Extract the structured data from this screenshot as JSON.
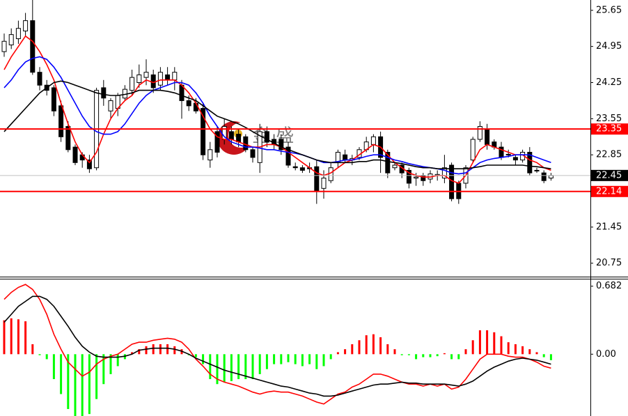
{
  "chart_data": [
    {
      "type": "candlestick",
      "ylim": [
        20.49,
        25.85
      ],
      "yticks": [
        25.65,
        24.95,
        24.25,
        23.55,
        22.85,
        21.45,
        20.75
      ],
      "up_color": "#ffffff",
      "down_color": "#000000",
      "edge_color": "#000000",
      "open": [
        24.85,
        24.98,
        25.1,
        25.25,
        25.45,
        24.45,
        24.2,
        24.15,
        23.8,
        23.4,
        23.0,
        22.85,
        22.75,
        22.6,
        24.15,
        23.7,
        23.75,
        23.95,
        24.1,
        24.25,
        24.35,
        24.4,
        24.2,
        24.4,
        24.3,
        24.2,
        23.9,
        23.85,
        23.75,
        22.75,
        23.3,
        23.15,
        23.3,
        23.25,
        23.2,
        22.95,
        22.7,
        23.3,
        23.15,
        23.15,
        23.0,
        22.62,
        22.6,
        22.6,
        22.62,
        22.2,
        22.35,
        22.7,
        22.85,
        22.75,
        22.8,
        22.95,
        23.05,
        23.2,
        22.9,
        22.6,
        22.65,
        22.55,
        22.4,
        22.45,
        22.38,
        22.45,
        22.4,
        22.65,
        22.3,
        22.3,
        22.75,
        23.15,
        23.35,
        23.1,
        23.0,
        22.85,
        22.8,
        22.75,
        22.9,
        22.55,
        22.5,
        22.4
      ],
      "high": [
        25.2,
        25.3,
        25.45,
        25.6,
        25.85,
        24.55,
        24.3,
        24.2,
        23.9,
        23.5,
        23.05,
        22.9,
        22.85,
        24.15,
        24.3,
        23.95,
        24.05,
        24.2,
        24.5,
        24.6,
        24.7,
        24.5,
        24.55,
        24.55,
        24.55,
        24.3,
        24.0,
        23.95,
        23.85,
        23.1,
        23.4,
        23.55,
        23.4,
        23.35,
        23.25,
        23.0,
        23.45,
        23.4,
        23.25,
        23.25,
        23.1,
        22.7,
        22.65,
        22.7,
        22.75,
        22.55,
        22.7,
        22.95,
        22.95,
        22.85,
        23.0,
        23.2,
        23.25,
        23.3,
        22.95,
        22.7,
        22.7,
        22.6,
        22.5,
        22.5,
        22.55,
        22.55,
        22.85,
        22.7,
        22.35,
        22.65,
        23.2,
        23.5,
        23.45,
        23.15,
        23.1,
        22.95,
        22.85,
        22.95,
        23.0,
        22.6,
        22.55,
        22.5
      ],
      "low": [
        24.75,
        24.9,
        25.0,
        25.15,
        24.4,
        24.1,
        24.0,
        23.6,
        23.1,
        22.9,
        22.65,
        22.6,
        22.5,
        22.55,
        23.8,
        23.55,
        23.6,
        23.9,
        24.0,
        24.15,
        24.2,
        24.05,
        24.1,
        24.2,
        24.1,
        23.55,
        23.7,
        23.65,
        22.75,
        22.6,
        22.8,
        23.05,
        23.05,
        23.0,
        22.9,
        22.7,
        22.5,
        23.0,
        22.95,
        22.85,
        22.6,
        22.55,
        22.5,
        22.5,
        21.9,
        22.0,
        22.3,
        22.6,
        22.7,
        22.65,
        22.75,
        22.9,
        22.9,
        22.5,
        22.4,
        22.55,
        22.4,
        22.2,
        22.25,
        22.25,
        22.3,
        22.35,
        22.3,
        21.95,
        21.9,
        22.2,
        22.7,
        23.1,
        22.95,
        22.95,
        22.75,
        22.8,
        22.65,
        22.7,
        22.45,
        22.5,
        22.3,
        22.35
      ],
      "close": [
        25.05,
        25.18,
        25.3,
        25.45,
        24.45,
        24.2,
        24.1,
        23.7,
        23.2,
        22.95,
        22.7,
        22.75,
        22.58,
        24.1,
        23.95,
        23.9,
        24.0,
        24.12,
        24.35,
        24.4,
        24.45,
        24.15,
        24.45,
        24.3,
        24.45,
        23.9,
        23.8,
        23.7,
        22.85,
        22.95,
        22.9,
        23.4,
        23.15,
        23.1,
        22.95,
        22.8,
        23.3,
        23.1,
        23.05,
        22.95,
        22.65,
        22.6,
        22.55,
        22.58,
        22.15,
        22.4,
        22.6,
        22.9,
        22.75,
        22.78,
        22.95,
        23.1,
        23.2,
        22.8,
        22.5,
        22.65,
        22.5,
        22.3,
        22.42,
        22.35,
        22.48,
        22.47,
        22.6,
        22.0,
        22.0,
        22.6,
        23.15,
        23.4,
        23.05,
        23.0,
        22.8,
        22.86,
        22.75,
        22.9,
        22.5,
        22.55,
        22.35,
        22.45
      ],
      "series": [
        {
          "color": "#ff0000",
          "values": [
            24.5,
            24.75,
            24.95,
            25.15,
            25.05,
            24.85,
            24.6,
            24.3,
            23.85,
            23.45,
            23.1,
            22.85,
            22.7,
            22.9,
            23.25,
            23.55,
            23.75,
            23.9,
            24.0,
            24.2,
            24.3,
            24.25,
            24.3,
            24.3,
            24.3,
            24.2,
            24.05,
            23.85,
            23.6,
            23.35,
            23.2,
            23.15,
            23.15,
            23.1,
            23.05,
            23.0,
            23.0,
            23.05,
            23.05,
            23.0,
            22.9,
            22.8,
            22.7,
            22.6,
            22.5,
            22.45,
            22.5,
            22.6,
            22.7,
            22.75,
            22.85,
            22.95,
            23.05,
            23.0,
            22.85,
            22.7,
            22.6,
            22.5,
            22.45,
            22.42,
            22.42,
            22.45,
            22.45,
            22.35,
            22.3,
            22.45,
            22.7,
            22.95,
            23.05,
            23.0,
            22.95,
            22.9,
            22.85,
            22.85,
            22.75,
            22.7,
            22.6,
            22.55
          ]
        },
        {
          "color": "#0000ff",
          "values": [
            24.15,
            24.3,
            24.5,
            24.65,
            24.72,
            24.75,
            24.7,
            24.55,
            24.35,
            24.1,
            23.85,
            23.6,
            23.4,
            23.3,
            23.25,
            23.25,
            23.3,
            23.45,
            23.65,
            23.85,
            24.0,
            24.1,
            24.15,
            24.2,
            24.25,
            24.25,
            24.2,
            24.05,
            23.85,
            23.6,
            23.4,
            23.2,
            23.1,
            23.05,
            23.0,
            23.0,
            22.98,
            22.95,
            22.95,
            22.92,
            22.9,
            22.88,
            22.85,
            22.8,
            22.75,
            22.7,
            22.7,
            22.72,
            22.75,
            22.75,
            22.78,
            22.82,
            22.85,
            22.85,
            22.8,
            22.75,
            22.72,
            22.68,
            22.65,
            22.62,
            22.6,
            22.58,
            22.55,
            22.5,
            22.48,
            22.5,
            22.6,
            22.7,
            22.75,
            22.78,
            22.8,
            22.82,
            22.85,
            22.85,
            22.85,
            22.8,
            22.75,
            22.7
          ]
        },
        {
          "color": "#000000",
          "values": [
            23.3,
            23.45,
            23.6,
            23.75,
            23.9,
            24.05,
            24.15,
            24.25,
            24.28,
            24.25,
            24.2,
            24.15,
            24.1,
            24.05,
            24.02,
            24.0,
            24.0,
            24.02,
            24.05,
            24.1,
            24.1,
            24.1,
            24.1,
            24.08,
            24.05,
            24.0,
            23.95,
            23.9,
            23.8,
            23.7,
            23.6,
            23.55,
            23.5,
            23.45,
            23.38,
            23.3,
            23.22,
            23.15,
            23.08,
            23.0,
            22.95,
            22.9,
            22.85,
            22.8,
            22.75,
            22.72,
            22.7,
            22.7,
            22.7,
            22.7,
            22.72,
            22.72,
            22.75,
            22.75,
            22.72,
            22.7,
            22.68,
            22.65,
            22.62,
            22.6,
            22.6,
            22.58,
            22.58,
            22.58,
            22.58,
            22.58,
            22.6,
            22.62,
            22.65,
            22.65,
            22.65,
            22.65,
            22.65,
            22.65,
            22.63,
            22.62,
            22.6,
            22.58
          ]
        }
      ],
      "hlines": [
        {
          "value": 23.35,
          "color": "#ff0000"
        },
        {
          "value": 22.14,
          "color": "#ff0000"
        }
      ],
      "last_price": 22.45,
      "watermark": "金 盛"
    },
    {
      "type": "macd",
      "ylim": [
        -0.62,
        0.75
      ],
      "yticks": [
        0.682,
        {
          "value": 0,
          "label": "0.00"
        }
      ],
      "histogram": {
        "positive_color": "#ff0000",
        "negative_color": "#00ff00",
        "values": [
          0.34,
          0.36,
          0.35,
          0.33,
          0.1,
          -0.01,
          -0.05,
          -0.25,
          -0.4,
          -0.55,
          -0.62,
          -0.62,
          -0.6,
          -0.45,
          -0.3,
          -0.2,
          -0.12,
          -0.05,
          0.02,
          0.05,
          0.08,
          0.1,
          0.1,
          0.1,
          0.08,
          0.05,
          -0.01,
          -0.03,
          -0.1,
          -0.25,
          -0.3,
          -0.28,
          -0.27,
          -0.25,
          -0.25,
          -0.25,
          -0.2,
          -0.15,
          -0.1,
          -0.1,
          -0.08,
          -0.1,
          -0.12,
          -0.1,
          -0.15,
          -0.12,
          -0.05,
          0.02,
          0.05,
          0.1,
          0.14,
          0.19,
          0.2,
          0.17,
          0.1,
          0.05,
          -0.01,
          -0.01,
          -0.05,
          -0.03,
          -0.03,
          -0.02,
          0.01,
          -0.05,
          -0.05,
          0.05,
          0.14,
          0.24,
          0.24,
          0.22,
          0.18,
          0.12,
          0.1,
          0.08,
          0.05,
          0.02,
          -0.03,
          -0.06
        ]
      },
      "series": [
        {
          "color": "#ff0000",
          "values": [
            0.55,
            0.62,
            0.67,
            0.7,
            0.65,
            0.55,
            0.4,
            0.2,
            0.05,
            -0.08,
            -0.15,
            -0.22,
            -0.18,
            -0.1,
            -0.05,
            -0.02,
            0.0,
            0.05,
            0.1,
            0.12,
            0.12,
            0.14,
            0.15,
            0.16,
            0.15,
            0.12,
            0.05,
            -0.05,
            -0.12,
            -0.2,
            -0.25,
            -0.28,
            -0.3,
            -0.32,
            -0.35,
            -0.38,
            -0.4,
            -0.38,
            -0.37,
            -0.38,
            -0.38,
            -0.4,
            -0.42,
            -0.45,
            -0.48,
            -0.5,
            -0.45,
            -0.4,
            -0.38,
            -0.33,
            -0.3,
            -0.25,
            -0.2,
            -0.2,
            -0.22,
            -0.25,
            -0.28,
            -0.3,
            -0.3,
            -0.32,
            -0.3,
            -0.32,
            -0.3,
            -0.35,
            -0.33,
            -0.25,
            -0.15,
            -0.05,
            0.0,
            0.0,
            0.0,
            -0.02,
            -0.03,
            -0.03,
            -0.05,
            -0.08,
            -0.12,
            -0.14
          ]
        },
        {
          "color": "#000000",
          "values": [
            0.32,
            0.4,
            0.48,
            0.53,
            0.58,
            0.58,
            0.55,
            0.48,
            0.38,
            0.28,
            0.17,
            0.08,
            0.02,
            -0.02,
            -0.03,
            -0.03,
            -0.03,
            -0.02,
            0.0,
            0.04,
            0.05,
            0.06,
            0.06,
            0.06,
            0.05,
            0.03,
            0.0,
            -0.04,
            -0.07,
            -0.1,
            -0.13,
            -0.16,
            -0.18,
            -0.2,
            -0.22,
            -0.24,
            -0.26,
            -0.28,
            -0.3,
            -0.32,
            -0.33,
            -0.35,
            -0.37,
            -0.39,
            -0.4,
            -0.42,
            -0.42,
            -0.41,
            -0.39,
            -0.37,
            -0.35,
            -0.33,
            -0.31,
            -0.3,
            -0.3,
            -0.29,
            -0.28,
            -0.29,
            -0.29,
            -0.3,
            -0.3,
            -0.3,
            -0.3,
            -0.31,
            -0.32,
            -0.3,
            -0.27,
            -0.22,
            -0.17,
            -0.13,
            -0.1,
            -0.07,
            -0.05,
            -0.04,
            -0.05,
            -0.06,
            -0.08,
            -0.1
          ]
        }
      ]
    }
  ]
}
